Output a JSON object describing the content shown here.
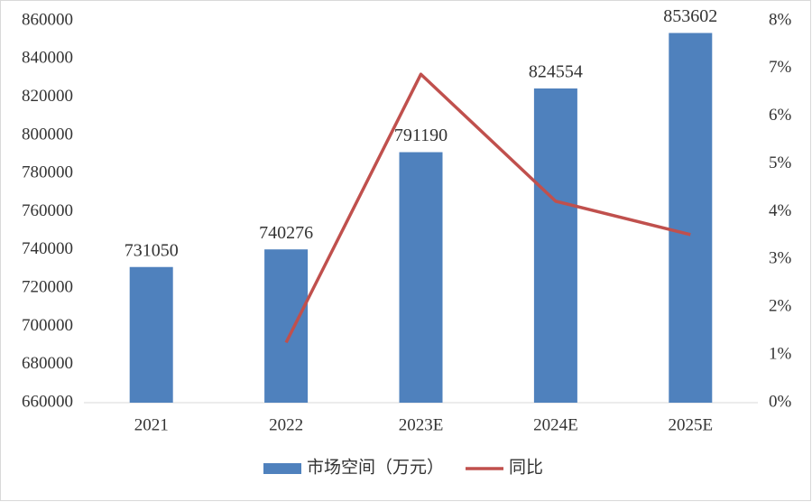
{
  "chart_data": {
    "type": "bar-line",
    "categories": [
      "2021",
      "2022",
      "2023E",
      "2024E",
      "2025E"
    ],
    "series": [
      {
        "name": "市场空间（万元）",
        "type": "bar",
        "color": "#4f81bd",
        "values": [
          731050,
          740276,
          791190,
          824554,
          853602
        ]
      },
      {
        "name": "同比",
        "type": "line",
        "color": "#c0504d",
        "axis": "y2",
        "values": [
          null,
          1.26,
          6.88,
          4.22,
          3.52
        ]
      }
    ],
    "ylim": [
      660000,
      860000
    ],
    "yticks": [
      660000,
      680000,
      700000,
      720000,
      740000,
      760000,
      780000,
      800000,
      820000,
      840000,
      860000
    ],
    "y2lim": [
      0,
      8
    ],
    "y2ticks": [
      {
        "value": 0,
        "label": "0%"
      },
      {
        "value": 1,
        "label": "1%"
      },
      {
        "value": 2,
        "label": "2%"
      },
      {
        "value": 3,
        "label": "3%"
      },
      {
        "value": 4,
        "label": "4%"
      },
      {
        "value": 5,
        "label": "5%"
      },
      {
        "value": 6,
        "label": "6%"
      },
      {
        "value": 7,
        "label": "7%"
      },
      {
        "value": 8,
        "label": "8%"
      }
    ],
    "legend": "bottom"
  }
}
